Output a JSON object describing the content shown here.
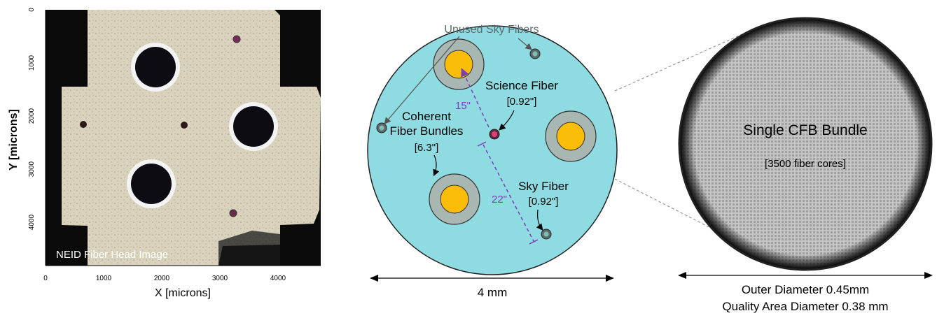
{
  "colors": {
    "pupil_fill": "#8fdbe2",
    "fiber_gold": "#fbbd08",
    "fiber_ring": "#a9b7b2",
    "science_pink": "#e0407a",
    "dim_purple": "#7b3fb6",
    "unused_gray": "#5a6b6b",
    "image_black": "#0a0a0a",
    "image_bg": "#d8d2bb",
    "bundle_gray": "#bfbfbf"
  },
  "panel_image": {
    "caption": "NEID Fiber Head Image",
    "xlabel": "X [microns]",
    "ylabel": "Y [microns]",
    "x_ticks": [
      "0",
      "1000",
      "2000",
      "3000",
      "4000"
    ],
    "y_ticks": [
      "0",
      "1000",
      "2000",
      "3000",
      "4000"
    ]
  },
  "panel_schematic": {
    "unused_sky_label": "Unused Sky Fibers",
    "science_label": "Science Fiber",
    "science_size": "[0.92\"]",
    "cfb_label_line1": "Coherent",
    "cfb_label_line2": "Fiber Bundles",
    "cfb_size": "[6.3\"]",
    "sky_label": "Sky Fiber",
    "sky_size": "[0.92\"]",
    "sep_science": "15\"",
    "sep_sky": "22\"",
    "width_label": "4 mm"
  },
  "panel_bundle": {
    "title": "Single CFB Bundle",
    "cores": "[3500 fiber cores]",
    "outer_diameter": "Outer Diameter 0.45mm",
    "quality_diameter": "Quality Area Diameter 0.38 mm"
  }
}
